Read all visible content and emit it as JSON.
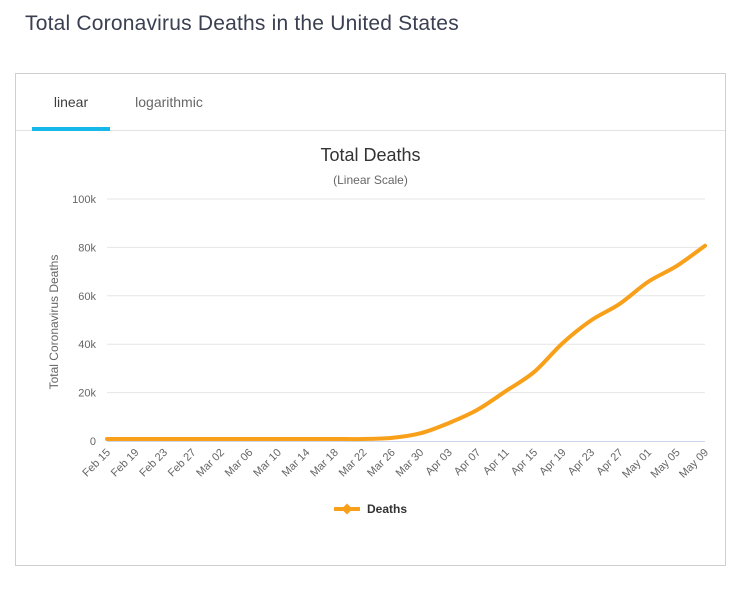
{
  "page": {
    "title": "Total Coronavirus Deaths in the United States"
  },
  "tabs": [
    {
      "label": "linear",
      "active": true
    },
    {
      "label": "logarithmic",
      "active": false
    }
  ],
  "colors": {
    "accent_cyan": "#15b8e8",
    "series_orange": "#f9a01b",
    "gridline": "#e6e6e6",
    "axis_line": "#ccd6eb",
    "tick_text": "#666666"
  },
  "chart_data": {
    "type": "line",
    "title": "Total Deaths",
    "subtitle": "(Linear Scale)",
    "xlabel": "",
    "ylabel": "Total Coronavirus Deaths",
    "ylim": [
      0,
      100000
    ],
    "yticks": [
      {
        "value": 0,
        "label": "0"
      },
      {
        "value": 20000,
        "label": "20k"
      },
      {
        "value": 40000,
        "label": "40k"
      },
      {
        "value": 60000,
        "label": "60k"
      },
      {
        "value": 80000,
        "label": "80k"
      },
      {
        "value": 100000,
        "label": "100k"
      }
    ],
    "categories": [
      "Feb 15",
      "Feb 19",
      "Feb 23",
      "Feb 27",
      "Mar 02",
      "Mar 06",
      "Mar 10",
      "Mar 14",
      "Mar 18",
      "Mar 22",
      "Mar 26",
      "Mar 30",
      "Apr 03",
      "Apr 07",
      "Apr 11",
      "Apr 15",
      "Apr 19",
      "Apr 23",
      "Apr 27",
      "May 01",
      "May 05",
      "May 09"
    ],
    "series": [
      {
        "name": "Deaths",
        "color": "#f9a01b",
        "values": [
          0,
          0,
          0,
          1,
          6,
          14,
          28,
          57,
          150,
          553,
          1295,
          3170,
          7392,
          12857,
          20577,
          28529,
          40461,
          49845,
          56634,
          65753,
          72271,
          80700
        ]
      }
    ],
    "grid": true,
    "legend_position": "bottom",
    "xtick_rotation": -45
  }
}
